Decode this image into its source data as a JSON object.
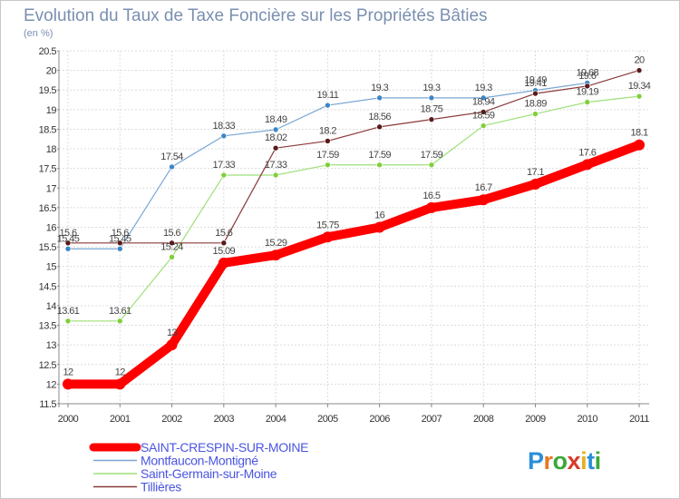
{
  "chart_data": {
    "type": "line",
    "title": "Evolution du Taux de Taxe Foncière sur les Propriétés Bâties",
    "subtitle": "(en %)",
    "xlabel": "",
    "ylabel": "",
    "x": [
      "2000",
      "2001",
      "2002",
      "2003",
      "2004",
      "2005",
      "2006",
      "2007",
      "2008",
      "2009",
      "2010",
      "2011"
    ],
    "ylim": [
      11.5,
      20.5
    ],
    "yticks": [
      "11.5",
      "12",
      "12.5",
      "13",
      "13.5",
      "14",
      "14.5",
      "15",
      "15.5",
      "16",
      "16.5",
      "17",
      "17.5",
      "18",
      "18.5",
      "19",
      "19.5",
      "20",
      "20.5"
    ],
    "grid": true,
    "legend_position": "bottom-left",
    "series": [
      {
        "name": "SAINT-CRESPIN-SUR-MOINE",
        "color": "#ff0000",
        "marker": "#ff0000",
        "values": [
          12,
          12,
          13,
          15.09,
          15.29,
          15.75,
          16,
          16.5,
          16.7,
          17.1,
          17.6,
          18.1
        ],
        "labels": [
          "12",
          "12",
          "13",
          "15.09",
          "15.29",
          "15.75",
          "16",
          "16.5",
          "16.7",
          "17.1",
          "17.6",
          "18.1"
        ]
      },
      {
        "name": "Montfaucon-Montigné",
        "color": "#7aa6d4",
        "marker": "#3d86c6",
        "values": [
          15.45,
          15.45,
          17.54,
          18.33,
          18.49,
          19.11,
          19.3,
          19.3,
          19.3,
          19.49,
          19.68,
          null
        ],
        "labels": [
          "15.45",
          "15.45",
          "17.54",
          "18.33",
          "18.49",
          "19.11",
          "19.3",
          "19.3",
          "19.3",
          "19.49",
          "19.68",
          ""
        ]
      },
      {
        "name": "Saint-Germain-sur-Moine",
        "color": "#9ee07a",
        "marker": "#7fcf3a",
        "values": [
          13.61,
          13.61,
          15.24,
          17.33,
          17.33,
          17.59,
          17.59,
          17.59,
          18.59,
          18.89,
          19.19,
          19.34
        ],
        "labels": [
          "13.61",
          "13.61",
          "15.24",
          "17.33",
          "17.33",
          "17.59",
          "17.59",
          "17.59",
          "18.59",
          "18.89",
          "19.19",
          "19.34"
        ]
      },
      {
        "name": "Tillières",
        "color": "#8b3a3a",
        "marker": "#5a1a1a",
        "values": [
          15.6,
          15.6,
          15.6,
          15.6,
          18.02,
          18.2,
          18.56,
          18.75,
          18.94,
          19.41,
          19.6,
          20
        ],
        "labels": [
          "15.6",
          "15.6",
          "15.6",
          "15.6",
          "18.02",
          "18.2",
          "18.56",
          "18.75",
          "18.94",
          "19.41",
          "19.6",
          "20"
        ]
      }
    ]
  },
  "legend": {
    "items": [
      {
        "label": "SAINT-CRESPIN-SUR-MOINE",
        "color": "#ff0000"
      },
      {
        "label": "Montfaucon-Montigné",
        "color": "#7aa6d4"
      },
      {
        "label": "Saint-Germain-sur-Moine",
        "color": "#9ee07a"
      },
      {
        "label": "Tillières",
        "color": "#8b3a3a"
      }
    ]
  },
  "logo": {
    "text": "Proxiti"
  }
}
